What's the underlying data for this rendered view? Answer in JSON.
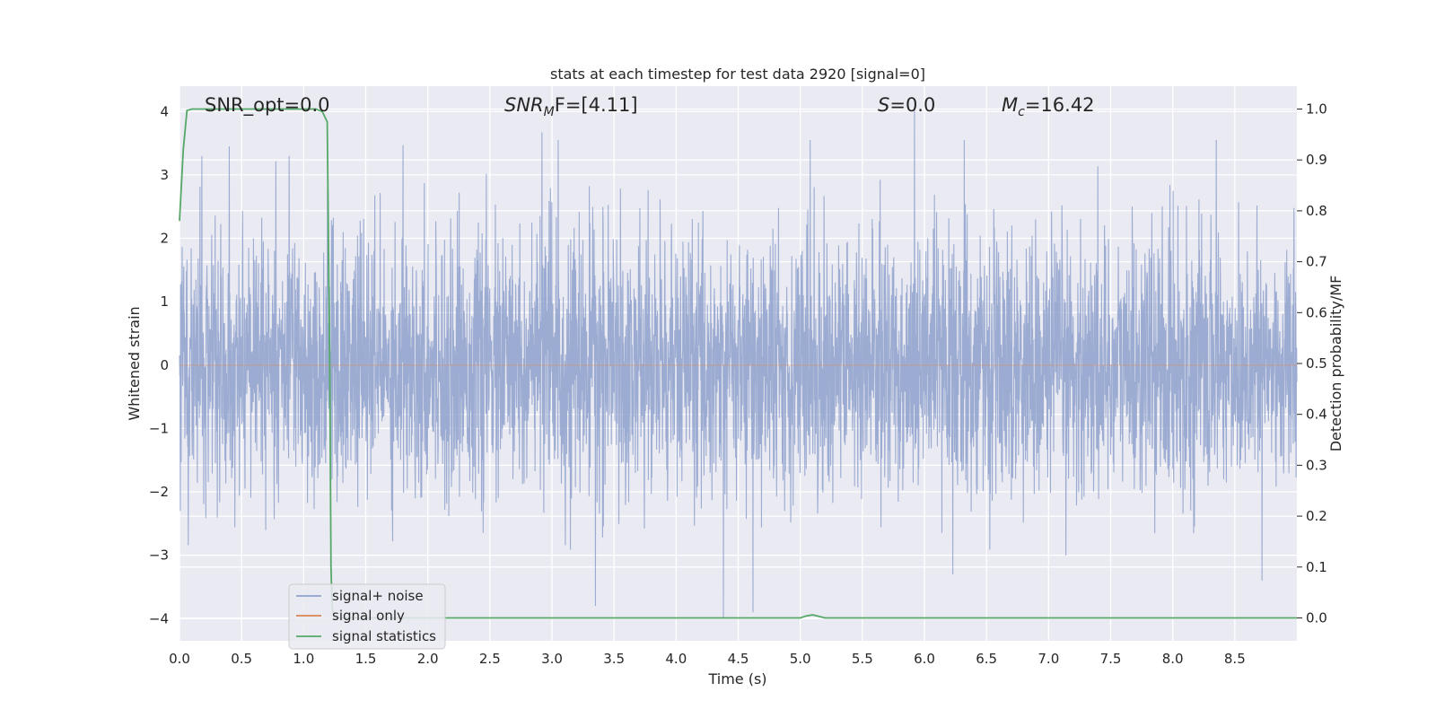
{
  "chart_data": {
    "type": "line",
    "title": "stats at each timestep for test data 2920 [signal=0]",
    "xlabel": "Time (s)",
    "ylabel": "Whitened strain",
    "y2label": "Detection probability/MF",
    "xlim": [
      0.0,
      9.0
    ],
    "ylim": [
      -4.35,
      4.4
    ],
    "y2lim": [
      -0.045,
      1.045
    ],
    "xticks": [
      "0.0",
      "0.5",
      "1.0",
      "1.5",
      "2.0",
      "2.5",
      "3.0",
      "3.5",
      "4.0",
      "4.5",
      "5.0",
      "5.5",
      "6.0",
      "6.5",
      "7.0",
      "7.5",
      "8.0",
      "8.5"
    ],
    "yticks": [
      4,
      3,
      2,
      1,
      0,
      -1,
      -2,
      -3,
      -4
    ],
    "ytick_labels": [
      "4",
      "3",
      "2",
      "1",
      "0",
      "−1",
      "−2",
      "−3",
      "−4"
    ],
    "y2ticks": [
      1.0,
      0.9,
      0.8,
      0.7,
      0.6,
      0.5,
      0.4,
      0.3,
      0.2,
      0.1,
      0.0
    ],
    "y2tick_labels": [
      "1.0",
      "0.9",
      "0.8",
      "0.7",
      "0.6",
      "0.5",
      "0.4",
      "0.3",
      "0.2",
      "0.1",
      "0.0"
    ],
    "grid": true,
    "legend_position": "lower-left",
    "annotations": {
      "snr_opt": "SNR_opt=0.0",
      "snr_mf_main": "SNR",
      "snr_mf_sub": "M",
      "snr_mf_rest": "F=[4.11]",
      "s_main": "S",
      "s_rest": "=0.0",
      "mc_main": "M",
      "mc_sub": "c",
      "mc_rest": "=16.42"
    },
    "series": [
      {
        "name": "signal+ noise",
        "axis": "left",
        "color": "#8da0cb",
        "description_envelope": "dense whitened noise, amplitude mostly within ±2.5, peaks near ±4",
        "peaks": [
          {
            "x": 0.4,
            "y": 3.45
          },
          {
            "x": 1.8,
            "y": 3.47
          },
          {
            "x": 2.92,
            "y": 3.67
          },
          {
            "x": 3.05,
            "y": 3.55
          },
          {
            "x": 5.08,
            "y": 3.55
          },
          {
            "x": 5.92,
            "y": 4.02
          },
          {
            "x": 6.32,
            "y": 3.55
          },
          {
            "x": 8.35,
            "y": 3.55
          },
          {
            "x": 3.35,
            "y": -3.8
          },
          {
            "x": 4.38,
            "y": -4.0
          },
          {
            "x": 4.62,
            "y": -3.9
          },
          {
            "x": 8.72,
            "y": -3.4
          }
        ]
      },
      {
        "name": "signal only",
        "axis": "left",
        "color": "#dd8452",
        "x": [
          0.0,
          9.0
        ],
        "y": [
          0.0,
          0.0
        ]
      },
      {
        "name": "signal statistics",
        "axis": "right",
        "color": "#55a868",
        "x": [
          0.0,
          0.03,
          0.06,
          0.1,
          0.2,
          0.5,
          0.8,
          1.0,
          1.1,
          1.15,
          1.19,
          1.21,
          1.22,
          1.23,
          1.25,
          1.4,
          2.0,
          3.0,
          4.0,
          5.0,
          5.05,
          5.1,
          5.15,
          5.2,
          6.0,
          7.0,
          8.0,
          9.0
        ],
        "y": [
          0.78,
          0.92,
          0.997,
          1.0,
          1.0,
          1.0,
          1.0,
          1.0,
          1.0,
          0.995,
          0.975,
          0.5,
          0.1,
          0.02,
          0.0,
          0.0,
          0.0,
          0.0,
          0.0,
          0.0,
          0.004,
          0.006,
          0.003,
          0.0,
          0.0,
          0.0,
          0.0,
          0.0
        ]
      }
    ]
  }
}
